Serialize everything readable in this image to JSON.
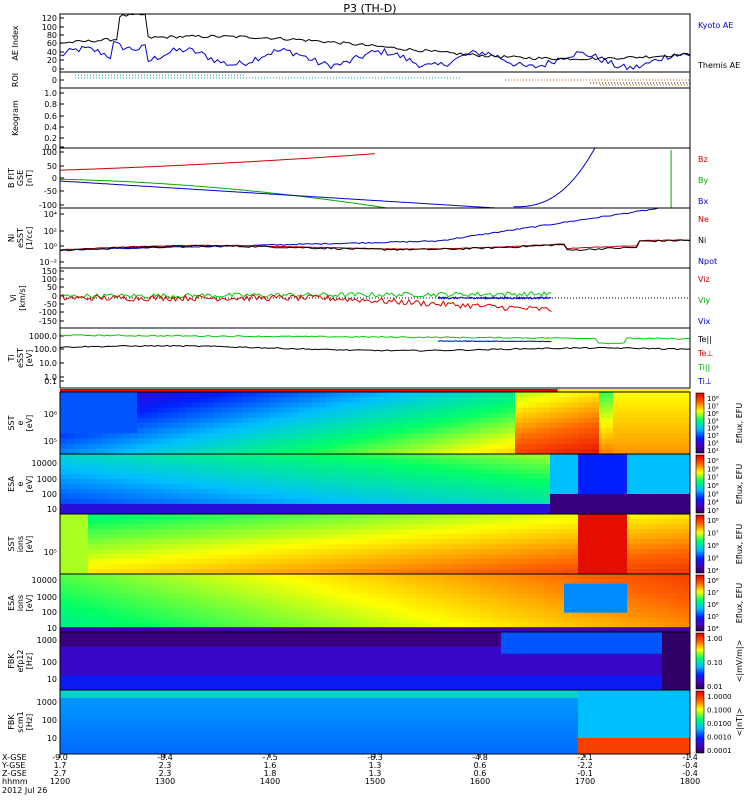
{
  "chart_data": {
    "type": "multi-panel-time-series",
    "title": "P3 (TH-D)",
    "date": "2012 Jul 26",
    "x_axis": {
      "hhmm": [
        "1200",
        "1300",
        "1400",
        "1500",
        "1600",
        "1700",
        "1800"
      ],
      "x_gse": [
        "-9.0",
        "-8.4",
        "-7.5",
        "-6.3",
        "-4.8",
        "-2.1",
        "-1.4"
      ],
      "y_gse": [
        "1.7",
        "2.3",
        "1.6",
        "1.3",
        "0.6",
        "-2.2",
        "-0.4"
      ],
      "z_gse": [
        "2.7",
        "2.3",
        "1.8",
        "1.3",
        "0.6",
        "-0.1",
        "-0.4"
      ],
      "row_labels": [
        "X-GSE",
        "Y-GSE",
        "Z-GSE",
        "hhmm"
      ]
    },
    "panels": [
      {
        "id": "ae",
        "ylabel_lines": [
          "AE Index"
        ],
        "ticks": [
          "120",
          "100",
          "80",
          "60",
          "40",
          "20",
          "0"
        ],
        "legend": [
          {
            "text": "Kyoto AE",
            "color": "#0000cc"
          },
          {
            "text": "Themis AE",
            "color": "#000000"
          }
        ]
      },
      {
        "id": "roi",
        "ylabel_lines": [
          "ROI"
        ],
        "ticks": [
          "0"
        ],
        "legend": []
      },
      {
        "id": "keogram",
        "ylabel_lines": [
          "Keogram"
        ],
        "ticks": [
          "1.0",
          "0.8",
          "0.6",
          "0.4",
          "0.2",
          "0.0"
        ],
        "legend": []
      },
      {
        "id": "bfield",
        "ylabel_lines": [
          "B FIT",
          "GSE",
          "[nT]"
        ],
        "ticks": [
          "100",
          "50",
          "0",
          "-50",
          "-100"
        ],
        "legend": [
          {
            "text": "Bz",
            "color": "#cc0000"
          },
          {
            "text": "By",
            "color": "#00aa00"
          },
          {
            "text": "Bx",
            "color": "#0000cc"
          }
        ]
      },
      {
        "id": "density",
        "ylabel_lines": [
          "Ni",
          "eSST",
          "[1/cc]"
        ],
        "ticks": [
          "10⁴",
          "10²",
          "10⁰",
          "10⁻²"
        ],
        "legend": [
          {
            "text": "Ne",
            "color": "#cc0000"
          },
          {
            "text": "Ni",
            "color": "#000000"
          },
          {
            "text": "Npot",
            "color": "#0000cc"
          }
        ]
      },
      {
        "id": "velocity",
        "ylabel_lines": [
          "Vi",
          "[km/s]"
        ],
        "ticks": [
          "150",
          "100",
          "50",
          "0",
          "-50",
          "-100",
          "-150"
        ],
        "legend": [
          {
            "text": "Viz",
            "color": "#cc0000"
          },
          {
            "text": "Viy",
            "color": "#00aa00"
          },
          {
            "text": "Vix",
            "color": "#0000cc"
          }
        ]
      },
      {
        "id": "temperature",
        "ylabel_lines": [
          "Ti",
          "eSST",
          "[eV]"
        ],
        "ticks": [
          "1000.0",
          "100.0",
          "10.0",
          "1.0",
          "0.1"
        ],
        "legend": [
          {
            "text": "Te||",
            "color": "#000000"
          },
          {
            "text": "Te⊥",
            "color": "#cc0000"
          },
          {
            "text": "Ti||",
            "color": "#00aa00"
          },
          {
            "text": "Ti⊥",
            "color": "#0000cc"
          }
        ]
      },
      {
        "id": "sst_e",
        "ylabel_lines": [
          "SST",
          "e",
          "[eV]"
        ],
        "ticks": [
          "10⁶",
          "10⁵"
        ],
        "cbar_label": "Eflux, EFU",
        "cbar_ticks": [
          "10⁸",
          "10⁷",
          "10⁶",
          "10⁵",
          "10⁴",
          "10³",
          "10²",
          "10¹"
        ]
      },
      {
        "id": "esa_e",
        "ylabel_lines": [
          "ESA",
          "e",
          "[eV]"
        ],
        "ticks": [
          "10000",
          "1000",
          "100",
          "10"
        ],
        "cbar_label": "Eflux, EFU",
        "cbar_ticks": [
          "10⁹",
          "10⁸",
          "10⁷",
          "10⁶",
          "10⁵",
          "10⁴",
          "10³"
        ]
      },
      {
        "id": "sst_i",
        "ylabel_lines": [
          "SST",
          "ions",
          "[eV]"
        ],
        "ticks": [
          "10⁵"
        ],
        "cbar_label": "Eflux, EFU",
        "cbar_ticks": [
          "10⁸",
          "10⁷",
          "10⁶",
          "10⁵",
          "10⁴"
        ]
      },
      {
        "id": "esa_i",
        "ylabel_lines": [
          "ESA",
          "ions",
          "[eV]"
        ],
        "ticks": [
          "10000",
          "1000",
          "100",
          "10"
        ],
        "cbar_label": "Eflux, EFU",
        "cbar_ticks": [
          "10⁸",
          "10⁷",
          "10⁶",
          "10⁵",
          "10⁴"
        ]
      },
      {
        "id": "fbk_e",
        "ylabel_lines": [
          "FBK",
          "efp12",
          "[Hz]"
        ],
        "ticks": [
          "1000",
          "100",
          "10"
        ],
        "cbar_label": "<|mV/m|>",
        "cbar_ticks": [
          "1.00",
          "0.10",
          "0.01"
        ]
      },
      {
        "id": "fbk_b",
        "ylabel_lines": [
          "FBK",
          "scm1",
          "[Hz]"
        ],
        "ticks": [
          "1000",
          "100",
          "10"
        ],
        "cbar_label": "<|nT|>",
        "cbar_ticks": [
          "1.0000",
          "0.1000",
          "0.0100",
          "0.0010",
          "0.0001"
        ]
      }
    ]
  }
}
